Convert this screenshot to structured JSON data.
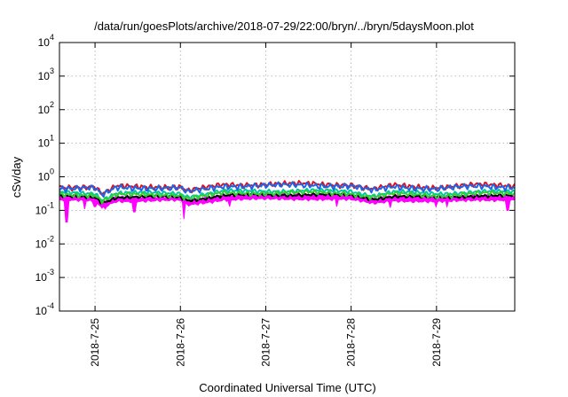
{
  "chart_data": {
    "type": "line",
    "title": "/data/run/goesPlots/archive/2018-07-29/22:00/bryn/../bryn/5daysMoon.plot",
    "xlabel": "Coordinated Universal Time (UTC)",
    "ylabel": "cSv/day",
    "y_scale": "log",
    "ylim": [
      0.0001,
      10000
    ],
    "xlim": [
      "2018-07-24 14:00",
      "2018-07-29 22:00"
    ],
    "y_ticks": [
      {
        "value": 0.0001,
        "base": "10",
        "exp": "-4"
      },
      {
        "value": 0.001,
        "base": "10",
        "exp": "-3"
      },
      {
        "value": 0.01,
        "base": "10",
        "exp": "-2"
      },
      {
        "value": 0.1,
        "base": "10",
        "exp": "-1"
      },
      {
        "value": 1,
        "base": "10",
        "exp": "0"
      },
      {
        "value": 10,
        "base": "10",
        "exp": "1"
      },
      {
        "value": 100,
        "base": "10",
        "exp": "2"
      },
      {
        "value": 1000,
        "base": "10",
        "exp": "3"
      },
      {
        "value": 10000,
        "base": "10",
        "exp": "4"
      }
    ],
    "x_ticks": [
      {
        "value": "2018-07-25 00:00",
        "label": "2018-7-25"
      },
      {
        "value": "2018-07-26 00:00",
        "label": "2018-7-26"
      },
      {
        "value": "2018-07-27 00:00",
        "label": "2018-7-27"
      },
      {
        "value": "2018-07-28 00:00",
        "label": "2018-7-28"
      },
      {
        "value": "2018-07-29 00:00",
        "label": "2018-7-29"
      }
    ],
    "grid": true,
    "legend": "none",
    "dip_events": [
      {
        "time": "2018-07-24 16:00",
        "min": 0.045
      },
      {
        "time": "2018-07-24 21:00",
        "min": 0.11
      },
      {
        "time": "2018-07-25 00:00",
        "min": 0.13
      },
      {
        "time": "2018-07-25 03:00",
        "min": 0.11
      },
      {
        "time": "2018-07-25 11:00",
        "min": 0.09
      },
      {
        "time": "2018-07-26 01:00",
        "min": 0.055
      },
      {
        "time": "2018-07-26 14:00",
        "min": 0.13
      },
      {
        "time": "2018-07-27 20:00",
        "min": 0.13
      },
      {
        "time": "2018-07-28 11:00",
        "min": 0.12
      },
      {
        "time": "2018-07-29 00:00",
        "min": 0.13
      },
      {
        "time": "2018-07-29 03:00",
        "min": 0.13
      },
      {
        "time": "2018-07-29 20:00",
        "min": 0.1
      }
    ],
    "series": [
      {
        "color": "#ff00ff",
        "fill": true,
        "x": [
          "2018-07-24 14:00",
          "2018-07-25 00:00",
          "2018-07-25 02:00",
          "2018-07-25 06:00",
          "2018-07-26 00:00",
          "2018-07-26 02:00",
          "2018-07-26 12:00",
          "2018-07-27 00:00",
          "2018-07-27 12:00",
          "2018-07-28 00:00",
          "2018-07-28 06:00",
          "2018-07-28 12:00",
          "2018-07-29 00:00",
          "2018-07-29 12:00",
          "2018-07-29 22:00"
        ],
        "y": [
          0.2,
          0.18,
          0.12,
          0.19,
          0.19,
          0.14,
          0.21,
          0.21,
          0.22,
          0.2,
          0.16,
          0.2,
          0.17,
          0.21,
          0.2
        ]
      },
      {
        "color": "#000000",
        "x": [
          "2018-07-24 14:00",
          "2018-07-25 00:00",
          "2018-07-25 02:00",
          "2018-07-25 06:00",
          "2018-07-26 00:00",
          "2018-07-26 02:00",
          "2018-07-26 12:00",
          "2018-07-27 00:00",
          "2018-07-27 12:00",
          "2018-07-28 00:00",
          "2018-07-28 06:00",
          "2018-07-28 12:00",
          "2018-07-29 00:00",
          "2018-07-29 12:00",
          "2018-07-29 22:00"
        ],
        "y": [
          0.26,
          0.25,
          0.17,
          0.25,
          0.25,
          0.2,
          0.28,
          0.29,
          0.3,
          0.28,
          0.22,
          0.27,
          0.24,
          0.28,
          0.27
        ]
      },
      {
        "color": "#00c8a0",
        "x": [
          "2018-07-24 14:00",
          "2018-07-25 00:00",
          "2018-07-25 02:00",
          "2018-07-25 06:00",
          "2018-07-26 00:00",
          "2018-07-26 02:00",
          "2018-07-26 12:00",
          "2018-07-27 00:00",
          "2018-07-27 12:00",
          "2018-07-28 00:00",
          "2018-07-28 06:00",
          "2018-07-28 12:00",
          "2018-07-29 00:00",
          "2018-07-29 12:00",
          "2018-07-29 22:00"
        ],
        "y": [
          0.34,
          0.33,
          0.21,
          0.33,
          0.33,
          0.26,
          0.37,
          0.38,
          0.39,
          0.37,
          0.28,
          0.36,
          0.31,
          0.37,
          0.35
        ]
      },
      {
        "color": "#32cd32",
        "x": [
          "2018-07-24 14:00",
          "2018-07-25 00:00",
          "2018-07-25 02:00",
          "2018-07-25 06:00",
          "2018-07-26 00:00",
          "2018-07-26 02:00",
          "2018-07-26 12:00",
          "2018-07-27 00:00",
          "2018-07-27 12:00",
          "2018-07-28 00:00",
          "2018-07-28 06:00",
          "2018-07-28 12:00",
          "2018-07-29 00:00",
          "2018-07-29 12:00",
          "2018-07-29 22:00"
        ],
        "y": [
          0.3,
          0.29,
          0.19,
          0.29,
          0.29,
          0.23,
          0.32,
          0.33,
          0.34,
          0.32,
          0.25,
          0.31,
          0.27,
          0.32,
          0.31
        ]
      },
      {
        "color": "#e0101a",
        "x": [
          "2018-07-24 14:00",
          "2018-07-25 00:00",
          "2018-07-25 02:00",
          "2018-07-25 06:00",
          "2018-07-26 00:00",
          "2018-07-26 02:00",
          "2018-07-26 12:00",
          "2018-07-27 00:00",
          "2018-07-27 12:00",
          "2018-07-28 00:00",
          "2018-07-28 06:00",
          "2018-07-28 12:00",
          "2018-07-29 00:00",
          "2018-07-29 12:00",
          "2018-07-29 22:00"
        ],
        "y": [
          0.5,
          0.5,
          0.3,
          0.52,
          0.5,
          0.38,
          0.58,
          0.6,
          0.62,
          0.58,
          0.42,
          0.56,
          0.48,
          0.58,
          0.55
        ]
      },
      {
        "color": "#1e64e6",
        "x": [
          "2018-07-24 14:00",
          "2018-07-25 00:00",
          "2018-07-25 02:00",
          "2018-07-25 06:00",
          "2018-07-26 00:00",
          "2018-07-26 02:00",
          "2018-07-26 12:00",
          "2018-07-27 00:00",
          "2018-07-27 12:00",
          "2018-07-28 00:00",
          "2018-07-28 06:00",
          "2018-07-28 12:00",
          "2018-07-29 00:00",
          "2018-07-29 12:00",
          "2018-07-29 22:00"
        ],
        "y": [
          0.46,
          0.46,
          0.28,
          0.48,
          0.46,
          0.35,
          0.53,
          0.55,
          0.57,
          0.53,
          0.39,
          0.51,
          0.44,
          0.53,
          0.5
        ]
      }
    ]
  }
}
